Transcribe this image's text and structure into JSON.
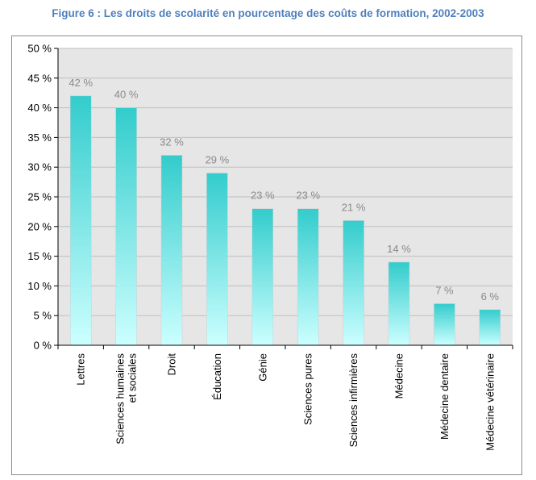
{
  "figure": {
    "title": "Figure 6 : Les droits de scolarité en pourcentage des coûts de formation, 2002-2003"
  },
  "chart_data": {
    "type": "bar",
    "title": "Figure 6 : Les droits de scolarité en pourcentage des coûts de formation, 2002-2003",
    "xlabel": "",
    "ylabel": "",
    "ylim": [
      0,
      50
    ],
    "yticks": [
      0,
      5,
      10,
      15,
      20,
      25,
      30,
      35,
      40,
      45,
      50
    ],
    "ytick_labels": [
      "0 %",
      "5 %",
      "10 %",
      "15 %",
      "20 %",
      "25 %",
      "30 %",
      "35 %",
      "40 %",
      "45 %",
      "50 %"
    ],
    "grid": true,
    "legend": "none",
    "categories": [
      [
        "Lettres"
      ],
      [
        "Sciences humaines",
        "et sociales"
      ],
      [
        "Droit"
      ],
      [
        "Éducation"
      ],
      [
        "Génie"
      ],
      [
        "Sciences pures"
      ],
      [
        "Sciences infirmières"
      ],
      [
        "Médecine"
      ],
      [
        "Médecine dentaire"
      ],
      [
        "Médecine vétérinaire"
      ]
    ],
    "values": [
      42,
      40,
      32,
      29,
      23,
      23,
      21,
      14,
      7,
      6
    ],
    "data_labels": [
      "42 %",
      "40 %",
      "32 %",
      "29 %",
      "23 %",
      "23 %",
      "21 %",
      "14 %",
      "7 %",
      "6 %"
    ],
    "colors": {
      "plot_background": "#e6e6e6",
      "bar_top": "#33cccc",
      "bar_bottom": "#ccffff",
      "data_label": "#8a8a8a",
      "title": "#4f7fbf"
    }
  }
}
